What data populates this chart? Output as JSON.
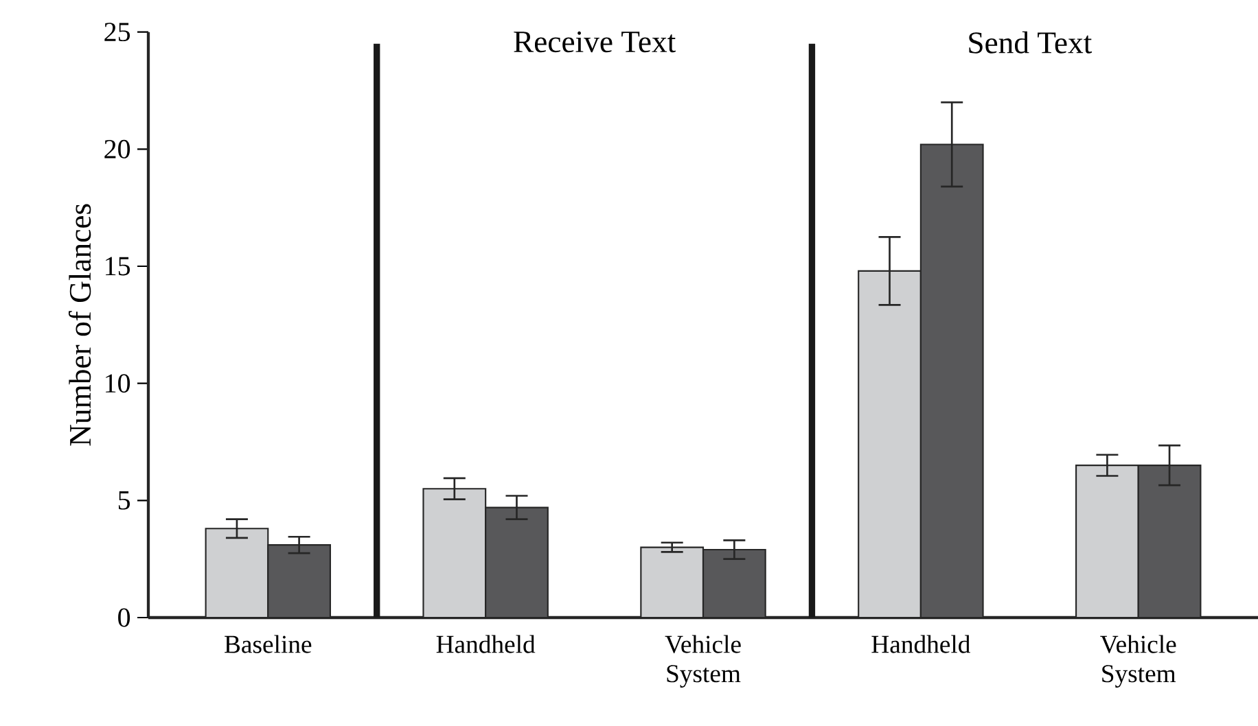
{
  "chart_data": {
    "type": "bar",
    "ylabel": "Number of Glances",
    "categories": [
      "Baseline",
      "Handheld",
      "Vehicle System",
      "Handheld",
      "Vehicle System"
    ],
    "series": [
      {
        "color": "#cfd0d2",
        "values": [
          3.8,
          5.5,
          3.0,
          14.8,
          6.5
        ],
        "errors": [
          0.4,
          0.45,
          0.2,
          1.45,
          0.45
        ]
      },
      {
        "color": "#58585a",
        "values": [
          3.1,
          4.7,
          2.9,
          20.2,
          6.5
        ],
        "errors": [
          0.35,
          0.5,
          0.4,
          1.8,
          0.85
        ]
      }
    ],
    "ylim": [
      0,
      25
    ],
    "yticks": [
      0,
      5,
      10,
      15,
      20,
      25
    ],
    "annotations": [
      "Receive Text",
      "Send Text"
    ],
    "grid": false
  }
}
